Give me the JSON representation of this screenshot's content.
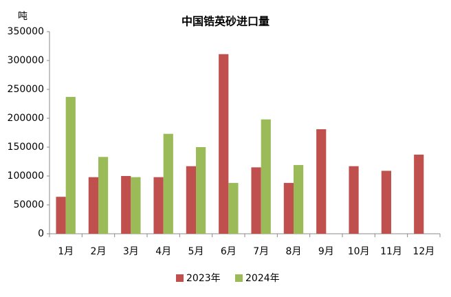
{
  "chart_data": {
    "type": "bar",
    "title": "中国锆英砂进口量",
    "y_label": "吨",
    "categories": [
      "1月",
      "2月",
      "3月",
      "4月",
      "5月",
      "6月",
      "7月",
      "8月",
      "9月",
      "10月",
      "11月",
      "12月"
    ],
    "series": [
      {
        "name": "2023年",
        "color": "#c0504d",
        "values": [
          64000,
          98000,
          100000,
          98000,
          117000,
          311000,
          115000,
          88000,
          181000,
          117000,
          109000,
          137000
        ]
      },
      {
        "name": "2024年",
        "color": "#9bbb59",
        "values": [
          237000,
          133000,
          98000,
          173000,
          150000,
          88000,
          198000,
          119000,
          null,
          null,
          null,
          null
        ]
      }
    ],
    "ylim": [
      0,
      350000
    ],
    "yticks": [
      0,
      50000,
      100000,
      150000,
      200000,
      250000,
      300000,
      350000
    ],
    "grid": false,
    "legend": "bottom"
  }
}
